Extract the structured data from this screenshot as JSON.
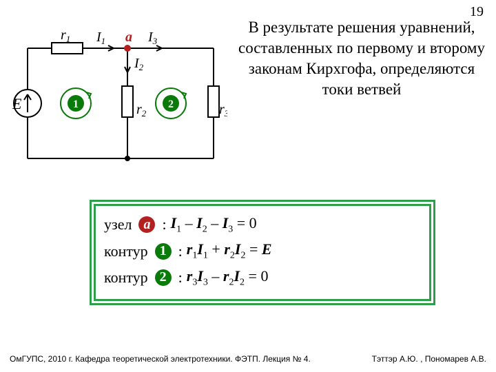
{
  "page_number": "19",
  "circuit": {
    "labels": {
      "E": "E",
      "r1": "r",
      "r1_sub": "1",
      "r2": "r",
      "r2_sub": "2",
      "r3": "r",
      "r3_sub": "3",
      "I1": "I",
      "I1_sub": "1",
      "I2": "I",
      "I2_sub": "2",
      "I3": "I",
      "I3_sub": "3",
      "node_a": "a",
      "loop1": "1",
      "loop2": "2"
    },
    "colors": {
      "wire": "#000000",
      "node_fill": "#b32020",
      "loop_fill": "#0a7a0a",
      "loop_stroke": "#0a7a0a"
    },
    "stroke_width": 2
  },
  "description": "В результате решения уравнений, составленных по первому и второму законам Кирхгофа, определяются токи ветвей",
  "equations": {
    "box_border_color": "#2e9e4a",
    "rows": [
      {
        "prefix": "узел",
        "badge_type": "node",
        "badge_text": "a",
        "colon": ":",
        "expr_html": "<span class=\"math\">I</span><span class=\"sub\">1</span> – <span class=\"math\">I</span><span class=\"sub\">2</span> – <span class=\"math\">I</span><span class=\"sub\">3</span> = 0"
      },
      {
        "prefix": "контур",
        "badge_type": "loop",
        "badge_text": "1",
        "colon": ":",
        "expr_html": "<span class=\"math\">r</span><span class=\"sub\">1</span><span class=\"math\">I</span><span class=\"sub\">1</span> + <span class=\"math\">r</span><span class=\"sub\">2</span><span class=\"math\">I</span><span class=\"sub\">2</span> = <span class=\"math\">E</span>"
      },
      {
        "prefix": "контур",
        "badge_type": "loop",
        "badge_text": "2",
        "colon": ":",
        "expr_html": "<span class=\"math\">r</span><span class=\"sub\">3</span><span class=\"math\">I</span><span class=\"sub\">3</span> – <span class=\"math\">r</span><span class=\"sub\">2</span><span class=\"math\">I</span><span class=\"sub\">2</span> = 0"
      }
    ]
  },
  "footer_left": "ОмГУПС, 2010 г. Кафедра теоретической электротехники. ФЭТП. Лекция № 4.",
  "footer_right": "Тэттэр А.Ю. , Пономарев А.В."
}
